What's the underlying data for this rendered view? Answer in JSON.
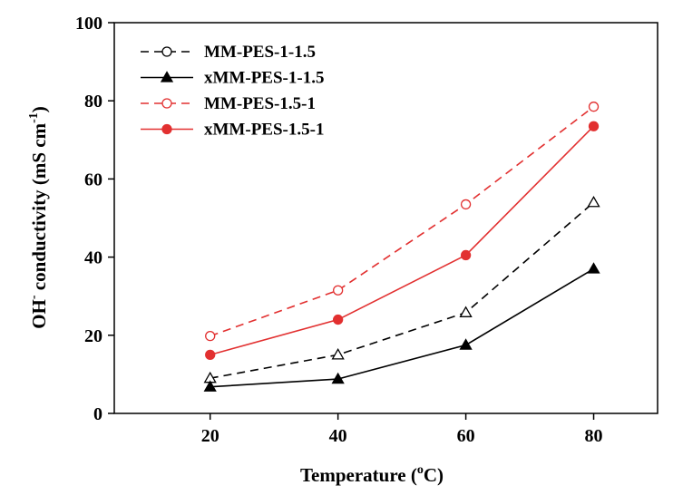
{
  "chart_data": {
    "type": "line",
    "x": [
      20,
      40,
      60,
      80
    ],
    "xticks": [
      "20",
      "40",
      "60",
      "80"
    ],
    "yticks": [
      "0",
      "20",
      "40",
      "60",
      "80",
      "100"
    ],
    "xlim": [
      5,
      90
    ],
    "ylim": [
      0,
      100
    ],
    "xlabel": {
      "pre": "Temperature (",
      "sup": "o",
      "post": "C)"
    },
    "ylabel": {
      "pre": "OH",
      "sup1": "-",
      "mid": " conductivity (mS cm",
      "sup2": "-1",
      "post": ")"
    },
    "grid": false,
    "legend_position": "top-left",
    "series": [
      {
        "name": "MM-PES-1-1.5",
        "values": [
          9.0,
          15.0,
          25.8,
          54.0
        ],
        "color": "#000000",
        "dashed": true,
        "marker": "triangle",
        "filled": false
      },
      {
        "name": "xMM-PES-1-1.5",
        "values": [
          6.8,
          8.8,
          17.5,
          37.0
        ],
        "color": "#000000",
        "dashed": false,
        "marker": "triangle",
        "filled": true
      },
      {
        "name": "MM-PES-1.5-1",
        "values": [
          19.8,
          31.5,
          53.5,
          78.5
        ],
        "color": "#e23030",
        "dashed": true,
        "marker": "circle",
        "filled": false
      },
      {
        "name": "xMM-PES-1.5-1",
        "values": [
          15.0,
          24.0,
          40.5,
          73.5
        ],
        "color": "#e23030",
        "dashed": false,
        "marker": "circle",
        "filled": true
      }
    ],
    "legend_markers": [
      "circle",
      "triangle",
      "circle",
      "circle"
    ]
  }
}
